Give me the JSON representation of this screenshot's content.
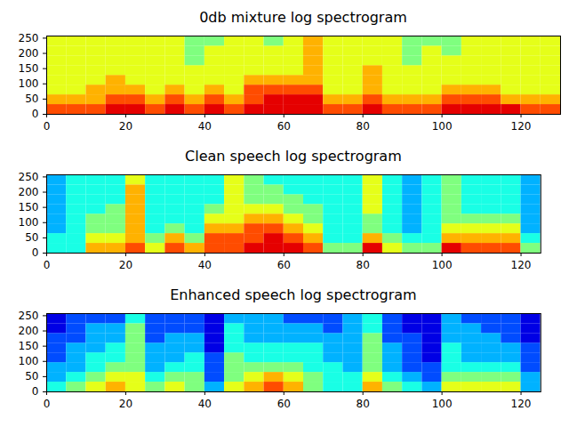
{
  "chart_data": [
    {
      "type": "heatmap",
      "title": "0db mixture log spectrogram",
      "color": "jet",
      "x": [
        0,
        5,
        10,
        15,
        20,
        25,
        30,
        35,
        40,
        45,
        50,
        55,
        60,
        65,
        70,
        75,
        80,
        85,
        90,
        95,
        100,
        105,
        110,
        115,
        120,
        125,
        130
      ],
      "y": [
        0,
        32,
        64,
        96,
        128,
        160,
        192,
        224,
        257
      ],
      "xlim": [
        0,
        130
      ],
      "ylim": [
        0,
        257
      ],
      "xticks": [
        0,
        20,
        40,
        60,
        80,
        100,
        120
      ],
      "yticks": [
        0,
        50,
        100,
        150,
        200,
        250
      ],
      "zlim": [
        0,
        10
      ],
      "values": [
        [
          8,
          8,
          8,
          9,
          9,
          8,
          9,
          8,
          9,
          8,
          9,
          9,
          9,
          9,
          8,
          8,
          9,
          8,
          8,
          8,
          9,
          9,
          9,
          9,
          8,
          8
        ],
        [
          7,
          7,
          7,
          8,
          8,
          7,
          8,
          7,
          8,
          7,
          8,
          9,
          9,
          9,
          7,
          7,
          8,
          7,
          7,
          7,
          8,
          8,
          8,
          7,
          7,
          7
        ],
        [
          6,
          6,
          7,
          7,
          7,
          6,
          7,
          6,
          7,
          6,
          8,
          8,
          8,
          8,
          6,
          6,
          7,
          6,
          6,
          6,
          7,
          7,
          7,
          6,
          6,
          6
        ],
        [
          6,
          6,
          6,
          7,
          6,
          6,
          6,
          6,
          6,
          6,
          7,
          7,
          7,
          7,
          6,
          6,
          7,
          6,
          6,
          6,
          6,
          6,
          6,
          6,
          6,
          6
        ],
        [
          6,
          6,
          6,
          6,
          6,
          6,
          6,
          6,
          6,
          6,
          6,
          6,
          6,
          7,
          6,
          6,
          7,
          6,
          6,
          6,
          6,
          6,
          6,
          6,
          6,
          6
        ],
        [
          6,
          6,
          6,
          6,
          6,
          6,
          6,
          5,
          6,
          6,
          6,
          6,
          6,
          7,
          6,
          6,
          6,
          6,
          5,
          6,
          6,
          6,
          6,
          6,
          6,
          6
        ],
        [
          6,
          6,
          6,
          6,
          6,
          6,
          6,
          5,
          6,
          6,
          6,
          6,
          6,
          7,
          6,
          6,
          6,
          6,
          5,
          6,
          5,
          6,
          6,
          6,
          6,
          6
        ],
        [
          6,
          6,
          6,
          6,
          6,
          6,
          6,
          5,
          5,
          6,
          6,
          5,
          6,
          7,
          6,
          6,
          6,
          6,
          5,
          5,
          5,
          6,
          6,
          6,
          6,
          6
        ]
      ]
    },
    {
      "type": "heatmap",
      "title": "Clean speech log spectrogram",
      "color": "jet",
      "x": [
        0,
        5,
        10,
        15,
        20,
        25,
        30,
        35,
        40,
        45,
        50,
        55,
        60,
        65,
        70,
        75,
        80,
        85,
        90,
        95,
        100,
        105,
        110,
        115,
        120,
        125
      ],
      "y": [
        0,
        32,
        64,
        96,
        128,
        160,
        192,
        224,
        257
      ],
      "xlim": [
        0,
        125
      ],
      "ylim": [
        0,
        257
      ],
      "xticks": [
        0,
        20,
        40,
        60,
        80,
        100,
        120
      ],
      "yticks": [
        0,
        50,
        100,
        150,
        200,
        250
      ],
      "zlim": [
        0,
        10
      ],
      "values": [
        [
          4,
          4,
          7,
          7,
          8,
          6,
          8,
          7,
          8,
          8,
          9,
          9,
          9,
          8,
          5,
          5,
          9,
          6,
          5,
          5,
          9,
          8,
          8,
          8,
          5
        ],
        [
          4,
          4,
          6,
          6,
          7,
          5,
          7,
          5,
          8,
          8,
          8,
          9,
          8,
          7,
          4,
          4,
          7,
          5,
          4,
          4,
          7,
          7,
          7,
          7,
          4
        ],
        [
          3,
          4,
          5,
          5,
          7,
          4,
          5,
          4,
          7,
          7,
          8,
          8,
          7,
          6,
          4,
          4,
          5,
          4,
          3,
          4,
          6,
          6,
          6,
          6,
          3
        ],
        [
          3,
          4,
          5,
          5,
          7,
          4,
          4,
          4,
          6,
          6,
          7,
          7,
          6,
          5,
          4,
          4,
          5,
          4,
          3,
          4,
          5,
          5,
          5,
          5,
          3
        ],
        [
          3,
          4,
          4,
          5,
          7,
          4,
          4,
          4,
          5,
          6,
          6,
          6,
          5,
          5,
          4,
          4,
          6,
          4,
          3,
          4,
          5,
          4,
          4,
          4,
          3
        ],
        [
          3,
          4,
          4,
          4,
          7,
          4,
          4,
          4,
          4,
          6,
          5,
          5,
          5,
          4,
          4,
          4,
          6,
          4,
          3,
          4,
          5,
          4,
          4,
          4,
          3
        ],
        [
          3,
          4,
          4,
          4,
          7,
          4,
          4,
          4,
          4,
          6,
          5,
          5,
          4,
          4,
          4,
          4,
          6,
          4,
          3,
          4,
          5,
          4,
          4,
          4,
          3
        ],
        [
          3,
          4,
          4,
          4,
          6,
          4,
          4,
          4,
          4,
          6,
          5,
          4,
          4,
          4,
          4,
          4,
          6,
          4,
          3,
          4,
          5,
          4,
          4,
          4,
          3
        ]
      ]
    },
    {
      "type": "heatmap",
      "title": "Enhanced speech log spectrogram",
      "color": "jet",
      "x": [
        0,
        5,
        10,
        15,
        20,
        25,
        30,
        35,
        40,
        45,
        50,
        55,
        60,
        65,
        70,
        75,
        80,
        85,
        90,
        95,
        100,
        105,
        110,
        115,
        120,
        125
      ],
      "y": [
        0,
        32,
        64,
        96,
        128,
        160,
        192,
        224,
        257
      ],
      "xlim": [
        0,
        125
      ],
      "ylim": [
        0,
        257
      ],
      "xticks": [
        0,
        20,
        40,
        60,
        80,
        100,
        120
      ],
      "yticks": [
        0,
        50,
        100,
        150,
        200,
        250
      ],
      "zlim": [
        0,
        10
      ],
      "values": [
        [
          4,
          5,
          6,
          7,
          6,
          5,
          6,
          5,
          3,
          6,
          7,
          8,
          7,
          5,
          4,
          4,
          7,
          5,
          4,
          3,
          6,
          6,
          6,
          6,
          3
        ],
        [
          3,
          4,
          5,
          6,
          6,
          4,
          5,
          5,
          2,
          5,
          6,
          7,
          6,
          5,
          4,
          4,
          6,
          4,
          3,
          2,
          5,
          5,
          5,
          5,
          3
        ],
        [
          3,
          3,
          4,
          5,
          5,
          3,
          4,
          4,
          2,
          5,
          5,
          5,
          5,
          4,
          4,
          3,
          5,
          3,
          2,
          2,
          4,
          4,
          4,
          4,
          2
        ],
        [
          2,
          3,
          4,
          4,
          5,
          3,
          3,
          4,
          2,
          5,
          4,
          4,
          4,
          4,
          3,
          3,
          5,
          3,
          2,
          1,
          4,
          3,
          3,
          3,
          2
        ],
        [
          2,
          3,
          3,
          4,
          5,
          3,
          3,
          3,
          1,
          4,
          4,
          4,
          4,
          4,
          3,
          3,
          5,
          3,
          2,
          1,
          4,
          3,
          3,
          3,
          2
        ],
        [
          2,
          2,
          3,
          3,
          5,
          2,
          3,
          3,
          1,
          4,
          3,
          3,
          3,
          3,
          3,
          3,
          5,
          2,
          2,
          1,
          3,
          3,
          3,
          2,
          1
        ],
        [
          1,
          2,
          3,
          3,
          5,
          2,
          2,
          2,
          1,
          4,
          3,
          3,
          3,
          3,
          2,
          3,
          4,
          2,
          1,
          1,
          3,
          3,
          2,
          2,
          1
        ],
        [
          1,
          2,
          2,
          2,
          4,
          2,
          2,
          2,
          1,
          3,
          3,
          3,
          2,
          2,
          2,
          3,
          4,
          2,
          1,
          1,
          3,
          2,
          2,
          2,
          1
        ]
      ]
    }
  ]
}
